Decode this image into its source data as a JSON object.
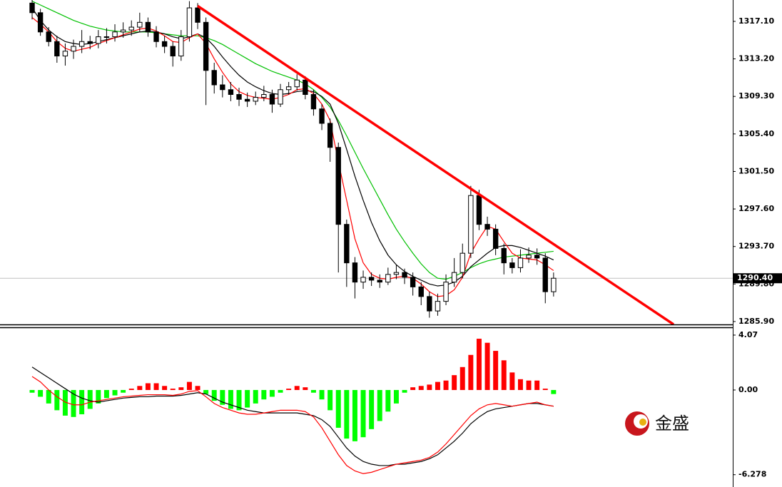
{
  "chart_data": [
    {
      "type": "candlestick",
      "xlim": [
        -3.45,
        84.65
      ],
      "ylim": [
        1285.6,
        1319.32
      ],
      "yticks": [
        {
          "value": 1317.1,
          "label": "1317.10"
        },
        {
          "value": 1313.2,
          "label": "1313.20"
        },
        {
          "value": 1309.3,
          "label": "1309.30"
        },
        {
          "value": 1305.4,
          "label": "1305.40"
        },
        {
          "value": 1301.5,
          "label": "1301.50"
        },
        {
          "value": 1297.6,
          "label": "1297.60"
        },
        {
          "value": 1293.7,
          "label": "1293.70"
        },
        {
          "value": 1289.8,
          "label": "1289.80"
        },
        {
          "value": 1285.9,
          "label": "1285.90"
        }
      ],
      "up_color": "#ffffff",
      "down_color": "#000000",
      "candles": [
        [
          1319,
          1319.5,
          1317.3,
          1318
        ],
        [
          1318,
          1318.4,
          1315.6,
          1316
        ],
        [
          1316,
          1316.5,
          1314.5,
          1315
        ],
        [
          1315,
          1315.6,
          1312.8,
          1313.5
        ],
        [
          1313.5,
          1314.8,
          1312.5,
          1314
        ],
        [
          1314,
          1315.2,
          1313.2,
          1314.5
        ],
        [
          1314.5,
          1316.2,
          1313.8,
          1315
        ],
        [
          1315,
          1315.6,
          1314.2,
          1314.8
        ],
        [
          1314.8,
          1316.2,
          1314.3,
          1315.5
        ],
        [
          1315.5,
          1316.4,
          1314.8,
          1315.5
        ],
        [
          1315.5,
          1316.8,
          1315,
          1316
        ],
        [
          1316,
          1317,
          1315.4,
          1316.2
        ],
        [
          1316.2,
          1317.2,
          1315.6,
          1316.5
        ],
        [
          1316.5,
          1318,
          1316,
          1317
        ],
        [
          1317,
          1317.5,
          1315.5,
          1316
        ],
        [
          1316,
          1316.6,
          1314.4,
          1315
        ],
        [
          1315,
          1315.6,
          1313.8,
          1314.5
        ],
        [
          1314.5,
          1315,
          1312.4,
          1313.5
        ],
        [
          1313.5,
          1316.2,
          1313,
          1315.5
        ],
        [
          1315.5,
          1319.2,
          1315,
          1318.5
        ],
        [
          1318.5,
          1319,
          1316.3,
          1317
        ],
        [
          1317,
          1317.5,
          1308.4,
          1312
        ],
        [
          1312,
          1312.8,
          1309.6,
          1310.5
        ],
        [
          1310.5,
          1311.5,
          1309.2,
          1310
        ],
        [
          1310,
          1310.8,
          1308.8,
          1309.5
        ],
        [
          1309.5,
          1310.2,
          1308.3,
          1309
        ],
        [
          1309,
          1309.7,
          1308.2,
          1308.8
        ],
        [
          1308.8,
          1309.8,
          1308.4,
          1309.2
        ],
        [
          1309.2,
          1310.4,
          1308.8,
          1309.5
        ],
        [
          1309.5,
          1310,
          1307.6,
          1308.5
        ],
        [
          1308.5,
          1310.6,
          1308.2,
          1310
        ],
        [
          1310,
          1310.8,
          1309.5,
          1310.3
        ],
        [
          1310.3,
          1311.6,
          1309.9,
          1311
        ],
        [
          1311,
          1311.4,
          1309,
          1309.5
        ],
        [
          1309.5,
          1310,
          1307.3,
          1308
        ],
        [
          1308,
          1308.5,
          1305.8,
          1306.5
        ],
        [
          1306.5,
          1307,
          1302.5,
          1304
        ],
        [
          1304,
          1304.5,
          1291,
          1296
        ],
        [
          1296,
          1296.5,
          1289.5,
          1292
        ],
        [
          1292,
          1292.6,
          1288.3,
          1290
        ],
        [
          1290,
          1291.2,
          1289.3,
          1290.5
        ],
        [
          1290.5,
          1291,
          1289.6,
          1290.2
        ],
        [
          1290.2,
          1290.8,
          1289.4,
          1290
        ],
        [
          1290,
          1291.5,
          1289.7,
          1290.8
        ],
        [
          1290.8,
          1291.8,
          1290.3,
          1291
        ],
        [
          1291,
          1291.4,
          1289.8,
          1290.5
        ],
        [
          1290.5,
          1291,
          1288.6,
          1289.5
        ],
        [
          1289.5,
          1290,
          1287.6,
          1288.5
        ],
        [
          1288.5,
          1289,
          1286.3,
          1287
        ],
        [
          1287,
          1288.8,
          1286.5,
          1288
        ],
        [
          1288,
          1290.8,
          1287.6,
          1290
        ],
        [
          1290,
          1292.5,
          1289.5,
          1291
        ],
        [
          1291,
          1294,
          1290.4,
          1293
        ],
        [
          1293,
          1300,
          1292.5,
          1299
        ],
        [
          1299,
          1299.6,
          1295.4,
          1296
        ],
        [
          1296,
          1296.8,
          1294.8,
          1295.5
        ],
        [
          1295.5,
          1296,
          1292.8,
          1293.5
        ],
        [
          1293.5,
          1294,
          1290.8,
          1292
        ],
        [
          1292,
          1292.5,
          1290.9,
          1291.5
        ],
        [
          1291.5,
          1293.4,
          1291,
          1292.5
        ],
        [
          1292.5,
          1293.6,
          1292,
          1292.8
        ],
        [
          1292.8,
          1293.5,
          1291.8,
          1292.5
        ],
        [
          1292.5,
          1293,
          1287.8,
          1289
        ],
        [
          1289,
          1291,
          1288.5,
          1290.4
        ]
      ],
      "lines": [
        {
          "color": "#00c000",
          "values": [
            1319.2,
            1318.8,
            1318.4,
            1318,
            1317.6,
            1317.2,
            1316.9,
            1316.6,
            1316.4,
            1316.2,
            1316.1,
            1316,
            1316,
            1316,
            1316,
            1315.9,
            1315.8,
            1315.7,
            1315.6,
            1315.6,
            1315.6,
            1315.4,
            1315.1,
            1314.7,
            1314.2,
            1313.7,
            1313.2,
            1312.7,
            1312.3,
            1311.9,
            1311.6,
            1311.3,
            1311,
            1310.6,
            1310,
            1309.2,
            1308.2,
            1306.8,
            1305.2,
            1303.5,
            1301.8,
            1300.2,
            1298.6,
            1297,
            1295.5,
            1294.2,
            1293,
            1291.9,
            1291,
            1290.4,
            1290.3,
            1290.6,
            1291,
            1291.5,
            1291.9,
            1292.2,
            1292.4,
            1292.6,
            1292.7,
            1292.8,
            1292.9,
            1293,
            1293.1,
            1293.2
          ]
        },
        {
          "color": "#000000",
          "values": [
            1318.5,
            1317.2,
            1316.2,
            1315.5,
            1315,
            1314.8,
            1314.7,
            1314.8,
            1315,
            1315.2,
            1315.4,
            1315.6,
            1315.8,
            1316,
            1316.1,
            1316,
            1315.8,
            1315.5,
            1315.3,
            1315.5,
            1315.8,
            1315.4,
            1314.5,
            1313.4,
            1312.4,
            1311.5,
            1310.8,
            1310.3,
            1309.9,
            1309.6,
            1309.5,
            1309.6,
            1309.8,
            1309.9,
            1309.8,
            1309.3,
            1308.5,
            1306.5,
            1303.8,
            1301,
            1298.5,
            1296.2,
            1294.3,
            1292.8,
            1291.8,
            1291.1,
            1290.6,
            1290.2,
            1289.8,
            1289.6,
            1289.7,
            1290,
            1290.6,
            1291.6,
            1292.3,
            1293,
            1293.6,
            1293.8,
            1293.8,
            1293.6,
            1293.3,
            1293,
            1292.7,
            1292.3
          ]
        },
        {
          "color": "#ff0000",
          "values": [
            1317.5,
            1316.8,
            1316,
            1315,
            1314.3,
            1314,
            1314.2,
            1314.4,
            1314.8,
            1315.1,
            1315.4,
            1315.7,
            1316,
            1316.3,
            1316.4,
            1316.1,
            1315.6,
            1315,
            1314.9,
            1315.4,
            1315.8,
            1314.8,
            1313.2,
            1311.8,
            1310.6,
            1309.8,
            1309.4,
            1309.2,
            1309.1,
            1309,
            1309.2,
            1309.5,
            1310,
            1310.1,
            1309.6,
            1308.5,
            1306.8,
            1302.5,
            1298.5,
            1294.5,
            1292,
            1290.8,
            1290.4,
            1290.3,
            1290.5,
            1290.6,
            1290.4,
            1289.8,
            1289,
            1288.5,
            1288.6,
            1289.2,
            1290.5,
            1293,
            1294.5,
            1295.8,
            1295.5,
            1294.2,
            1293,
            1292.5,
            1292.4,
            1292.3,
            1291.8,
            1291.2
          ]
        }
      ],
      "trendline": {
        "color": "#ff0000",
        "x": [
          20,
          77.5
        ],
        "values": [
          1318.7,
          1285.6
        ]
      },
      "last_price": {
        "value": 1290.4,
        "label": "1290.40"
      }
    },
    {
      "type": "macd",
      "xlim": [
        -3.45,
        84.65
      ],
      "ylim": [
        -7.19,
        4.49
      ],
      "yticks": [
        4.07,
        {
          "value": 0,
          "label": "0.00"
        },
        -6.278
      ],
      "up_color": "#ff0000",
      "down_color": "#00ff00",
      "histogram": [
        -0.2,
        -0.5,
        -1.0,
        -1.5,
        -1.9,
        -2.0,
        -1.8,
        -1.4,
        -1.0,
        -0.6,
        -0.4,
        -0.2,
        0.1,
        0.3,
        0.5,
        0.5,
        0.3,
        0.1,
        0.2,
        0.6,
        0.3,
        -0.3,
        -0.8,
        -1.1,
        -1.4,
        -1.5,
        -1.3,
        -1.0,
        -0.7,
        -0.5,
        -0.2,
        0.1,
        0.3,
        0.2,
        -0.2,
        -0.7,
        -1.5,
        -2.8,
        -3.6,
        -3.8,
        -3.5,
        -2.9,
        -2.3,
        -1.6,
        -1.0,
        -0.2,
        0.2,
        0.3,
        0.4,
        0.6,
        0.7,
        1.1,
        1.7,
        2.6,
        3.8,
        3.5,
        2.9,
        2.2,
        1.3,
        0.8,
        0.7,
        0.7,
        0.1,
        -0.3
      ],
      "lines": [
        {
          "color": "#000000",
          "values": [
            1.7,
            1.3,
            0.9,
            0.5,
            0.1,
            -0.3,
            -0.6,
            -0.8,
            -0.9,
            -0.8,
            -0.7,
            -0.6,
            -0.55,
            -0.5,
            -0.5,
            -0.45,
            -0.45,
            -0.45,
            -0.4,
            -0.3,
            -0.2,
            -0.3,
            -0.6,
            -0.9,
            -1.1,
            -1.3,
            -1.5,
            -1.6,
            -1.7,
            -1.7,
            -1.7,
            -1.7,
            -1.7,
            -1.8,
            -1.9,
            -2.2,
            -2.7,
            -3.5,
            -4.3,
            -4.9,
            -5.3,
            -5.5,
            -5.6,
            -5.6,
            -5.5,
            -5.5,
            -5.4,
            -5.3,
            -5.1,
            -4.8,
            -4.3,
            -3.8,
            -3.2,
            -2.5,
            -2.0,
            -1.6,
            -1.4,
            -1.3,
            -1.2,
            -1.1,
            -1.0,
            -1.0,
            -1.1,
            -1.2
          ]
        },
        {
          "color": "#ff0000",
          "values": [
            1.0,
            0.6,
            0.0,
            -0.5,
            -0.9,
            -1.1,
            -1.1,
            -0.9,
            -0.8,
            -0.7,
            -0.6,
            -0.5,
            -0.45,
            -0.4,
            -0.35,
            -0.35,
            -0.35,
            -0.4,
            -0.3,
            -0.1,
            -0.05,
            -0.5,
            -1.0,
            -1.3,
            -1.5,
            -1.7,
            -1.8,
            -1.8,
            -1.7,
            -1.6,
            -1.5,
            -1.5,
            -1.5,
            -1.6,
            -2.0,
            -2.8,
            -3.8,
            -4.8,
            -5.6,
            -6.0,
            -6.2,
            -6.1,
            -5.9,
            -5.7,
            -5.5,
            -5.4,
            -5.3,
            -5.2,
            -5.0,
            -4.6,
            -4.0,
            -3.3,
            -2.6,
            -1.9,
            -1.4,
            -1.1,
            -1.0,
            -1.1,
            -1.2,
            -1.1,
            -1.0,
            -0.9,
            -1.1,
            -1.2
          ]
        }
      ]
    }
  ],
  "logo": {
    "text": "金盛"
  }
}
